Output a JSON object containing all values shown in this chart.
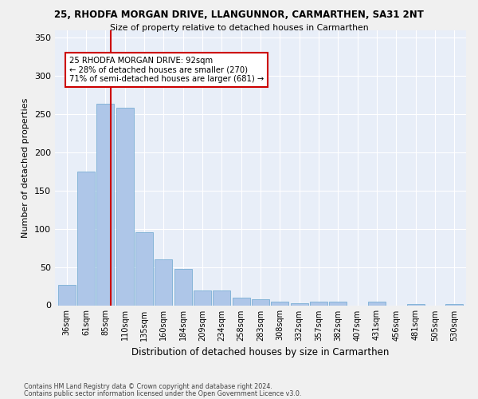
{
  "title1": "25, RHODFA MORGAN DRIVE, LLANGUNNOR, CARMARTHEN, SA31 2NT",
  "title2": "Size of property relative to detached houses in Carmarthen",
  "xlabel": "Distribution of detached houses by size in Carmarthen",
  "ylabel": "Number of detached properties",
  "categories": [
    "36sqm",
    "61sqm",
    "85sqm",
    "110sqm",
    "135sqm",
    "160sqm",
    "184sqm",
    "209sqm",
    "234sqm",
    "258sqm",
    "283sqm",
    "308sqm",
    "332sqm",
    "357sqm",
    "382sqm",
    "407sqm",
    "431sqm",
    "456sqm",
    "481sqm",
    "505sqm",
    "530sqm"
  ],
  "values": [
    27,
    175,
    263,
    258,
    95,
    60,
    47,
    19,
    19,
    10,
    8,
    5,
    3,
    5,
    5,
    0,
    5,
    0,
    2,
    0,
    2
  ],
  "bar_color": "#aec6e8",
  "bar_edge_color": "#7aafd4",
  "annotation_text_line1": "25 RHODFA MORGAN DRIVE: 92sqm",
  "annotation_text_line2": "← 28% of detached houses are smaller (270)",
  "annotation_text_line3": "71% of semi-detached houses are larger (681) →",
  "annotation_line_color": "#cc0000",
  "ylim": [
    0,
    360
  ],
  "yticks": [
    0,
    50,
    100,
    150,
    200,
    250,
    300,
    350
  ],
  "background_color": "#e8eef8",
  "grid_color": "#ffffff",
  "figure_bg": "#f0f0f0",
  "footer1": "Contains HM Land Registry data © Crown copyright and database right 2024.",
  "footer2": "Contains public sector information licensed under the Open Government Licence v3.0."
}
